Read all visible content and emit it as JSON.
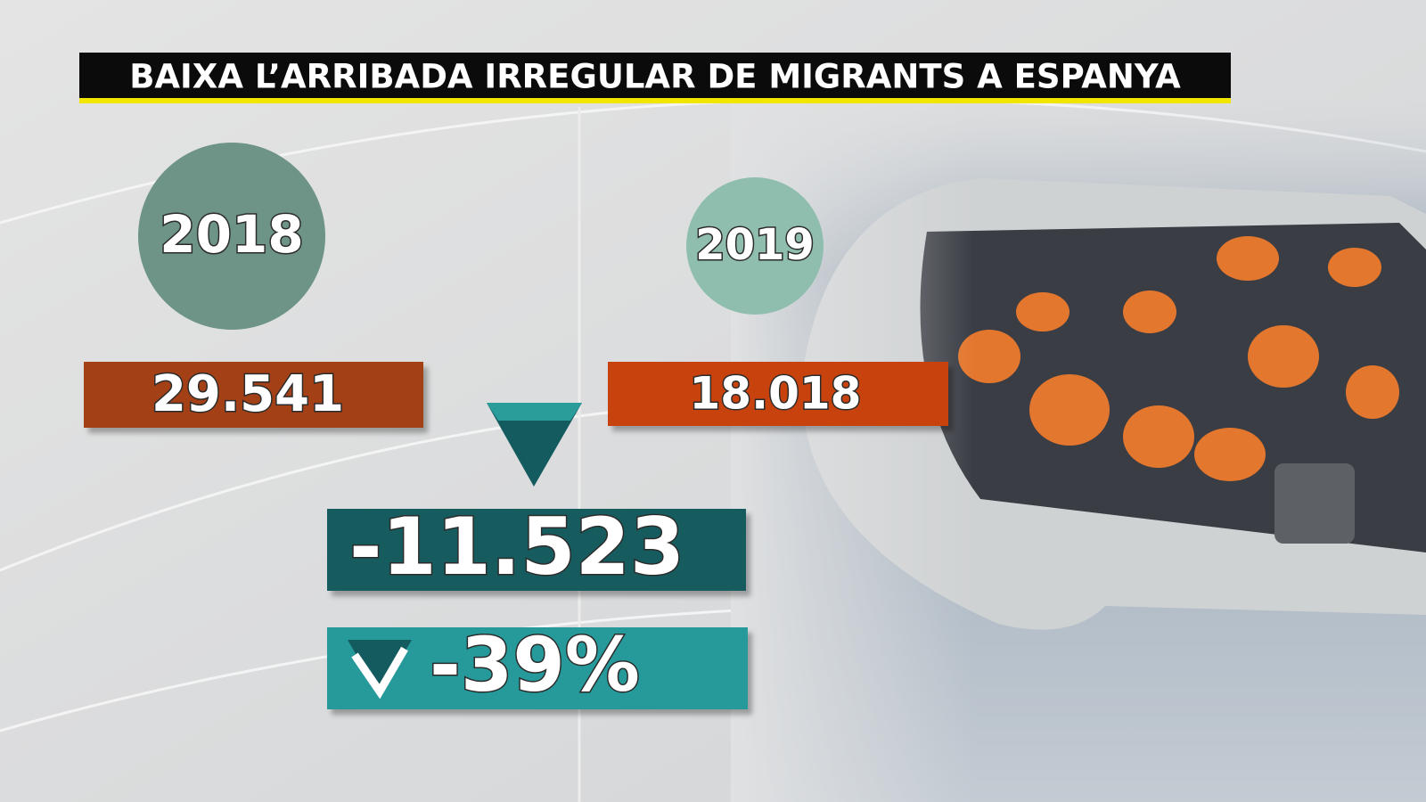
{
  "title": "BAIXA L’ARRIBADA IRREGULAR DE MIGRANTS A ESPANYA",
  "years": [
    {
      "year": "2018",
      "value": "29.541"
    },
    {
      "year": "2019",
      "value": "18.018"
    }
  ],
  "difference": "-11.523",
  "percent": "-39%"
}
